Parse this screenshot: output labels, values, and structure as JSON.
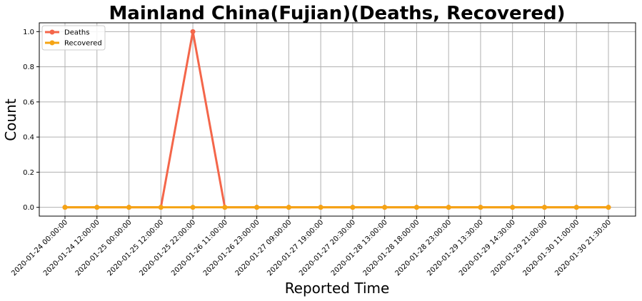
{
  "chart_data": {
    "type": "line",
    "title": "Mainland China(Fujian)(Deaths, Recovered)",
    "xlabel": "Reported Time",
    "ylabel": "Count",
    "ylim": [
      -0.05,
      1.05
    ],
    "yticks": [
      "0.0",
      "0.2",
      "0.4",
      "0.6",
      "0.8",
      "1.0"
    ],
    "yticks_values": [
      0,
      0.2,
      0.4,
      0.6,
      0.8,
      1.0
    ],
    "grid": true,
    "legend_position": "upper-left",
    "categories": [
      "2020-01-24 00:00:00",
      "2020-01-24 12:00:00",
      "2020-01-25 00:00:00",
      "2020-01-25 12:00:00",
      "2020-01-25 22:00:00",
      "2020-01-26 11:00:00",
      "2020-01-26 23:00:00",
      "2020-01-27 09:00:00",
      "2020-01-27 19:00:00",
      "2020-01-27 20:30:00",
      "2020-01-28 13:00:00",
      "2020-01-28 18:00:00",
      "2020-01-28 23:00:00",
      "2020-01-29 13:30:00",
      "2020-01-29 14:30:00",
      "2020-01-29 21:00:00",
      "2020-01-30 11:00:00",
      "2020-01-30 21:30:00"
    ],
    "series": [
      {
        "name": "Deaths",
        "color": "#f4664a",
        "values": [
          0,
          0,
          0,
          0,
          1,
          0,
          0,
          0,
          0,
          0,
          0,
          0,
          0,
          0,
          0,
          0,
          0,
          0
        ]
      },
      {
        "name": "Recovered",
        "color": "#f5a414",
        "values": [
          0,
          0,
          0,
          0,
          0,
          0,
          0,
          0,
          0,
          0,
          0,
          0,
          0,
          0,
          0,
          0,
          0,
          0
        ]
      }
    ]
  }
}
